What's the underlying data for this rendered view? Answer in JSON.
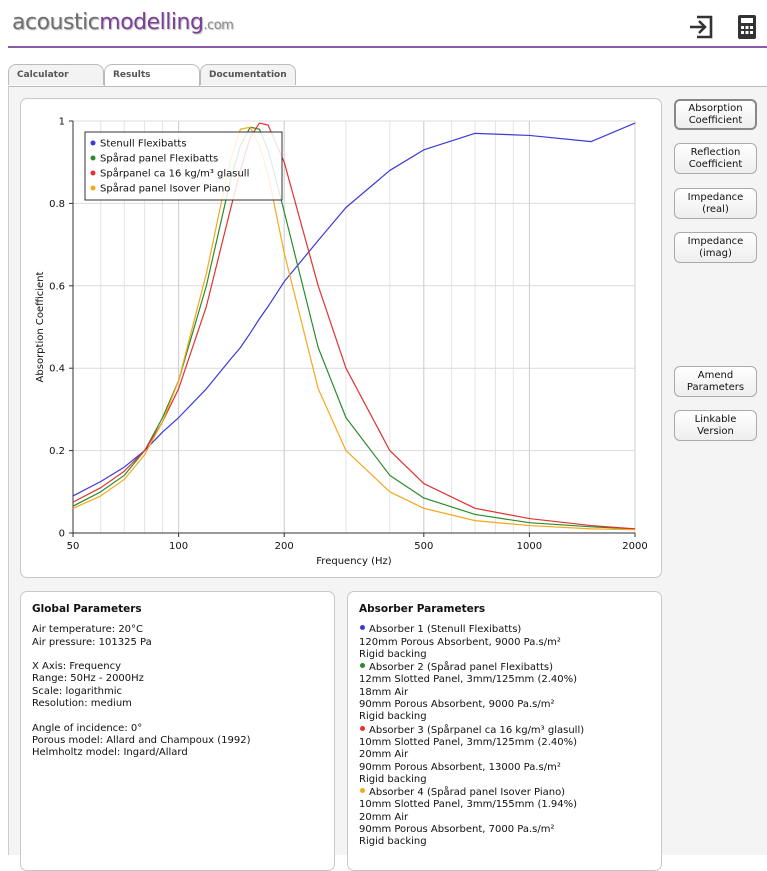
{
  "header": {
    "logo": [
      "acoustic",
      "modelling",
      ".com"
    ]
  },
  "tabs": [
    "Calculator",
    "Results",
    "Documentation"
  ],
  "buttons": [
    "Absorption Coefficient",
    "Reflection Coefficient",
    "Impedance (real)",
    "Impedance (imag)",
    "Amend Parameters",
    "Linkable Version"
  ],
  "chart_data": {
    "type": "line",
    "xlabel": "Frequency (Hz)",
    "ylabel": "Absorption Coefficient",
    "x": [
      50,
      60,
      70,
      80,
      90,
      100,
      120,
      140,
      150,
      160,
      170,
      180,
      200,
      250,
      300,
      400,
      500,
      700,
      1000,
      1500,
      2000
    ],
    "series": [
      {
        "name": "Stenull Flexibatts",
        "color": "#3a3ad8",
        "values": [
          0.09,
          0.125,
          0.16,
          0.2,
          0.245,
          0.28,
          0.35,
          0.42,
          0.45,
          0.485,
          0.52,
          0.55,
          0.61,
          0.71,
          0.79,
          0.88,
          0.93,
          0.97,
          0.965,
          0.95,
          0.995
        ]
      },
      {
        "name": "Spårad panel Flexibatts",
        "color": "#2a8c2a",
        "values": [
          0.065,
          0.1,
          0.14,
          0.2,
          0.28,
          0.37,
          0.6,
          0.85,
          0.94,
          0.985,
          0.98,
          0.93,
          0.78,
          0.45,
          0.28,
          0.14,
          0.085,
          0.045,
          0.025,
          0.015,
          0.01
        ]
      },
      {
        "name": "Spårpanel ca 16 kg/m³ glasull",
        "color": "#e03232",
        "values": [
          0.075,
          0.11,
          0.15,
          0.2,
          0.27,
          0.35,
          0.55,
          0.78,
          0.88,
          0.96,
          0.995,
          0.99,
          0.9,
          0.6,
          0.4,
          0.2,
          0.12,
          0.06,
          0.035,
          0.018,
          0.01
        ]
      },
      {
        "name": "Spårad panel Isover Piano",
        "color": "#f4a81c",
        "values": [
          0.06,
          0.09,
          0.13,
          0.19,
          0.27,
          0.37,
          0.63,
          0.9,
          0.98,
          0.985,
          0.94,
          0.87,
          0.68,
          0.35,
          0.2,
          0.1,
          0.06,
          0.03,
          0.018,
          0.01,
          0.008
        ]
      }
    ],
    "xlim": [
      50,
      2000
    ],
    "xticks": [
      50,
      100,
      200,
      500,
      1000,
      2000
    ],
    "ylim": [
      0,
      1
    ],
    "yticks": [
      0,
      0.2,
      0.4,
      0.6,
      0.8,
      1
    ],
    "log_x": true,
    "grid": true,
    "legend": "upper left"
  },
  "global_parameters": {
    "title": "Global Parameters",
    "groups": [
      [
        "Air temperature: 20°C",
        "Air pressure: 101325 Pa"
      ],
      [
        "X Axis: Frequency",
        "Range: 50Hz - 2000Hz",
        "Scale: logarithmic",
        "Resolution: medium"
      ],
      [
        "Angle of incidence: 0°",
        "Porous model: Allard and Champoux (1992)",
        "Helmholtz model: Ingard/Allard"
      ]
    ]
  },
  "absorber_parameters": {
    "title": "Absorber Parameters",
    "absorbers": [
      {
        "name": "Absorber 1 (Stenull Flexibatts)",
        "lines": [
          "120mm Porous Absorbent, 9000 Pa.s/m²",
          "Rigid backing"
        ]
      },
      {
        "name": "Absorber 2 (Spårad panel Flexibatts)",
        "lines": [
          "12mm Slotted Panel, 3mm/125mm (2.40%)",
          "18mm Air",
          "90mm Porous Absorbent, 9000 Pa.s/m²",
          "Rigid backing"
        ]
      },
      {
        "name": "Absorber 3 (Spårpanel ca 16 kg/m³ glasull)",
        "lines": [
          "10mm Slotted Panel, 3mm/125mm (2.40%)",
          "20mm Air",
          "90mm Porous Absorbent, 13000 Pa.s/m²",
          "Rigid backing"
        ]
      },
      {
        "name": "Absorber 4 (Spårad panel Isover Piano)",
        "lines": [
          "10mm Slotted Panel, 3mm/155mm (1.94%)",
          "20mm Air",
          "90mm Porous Absorbent, 7000 Pa.s/m²",
          "Rigid backing"
        ]
      }
    ]
  }
}
